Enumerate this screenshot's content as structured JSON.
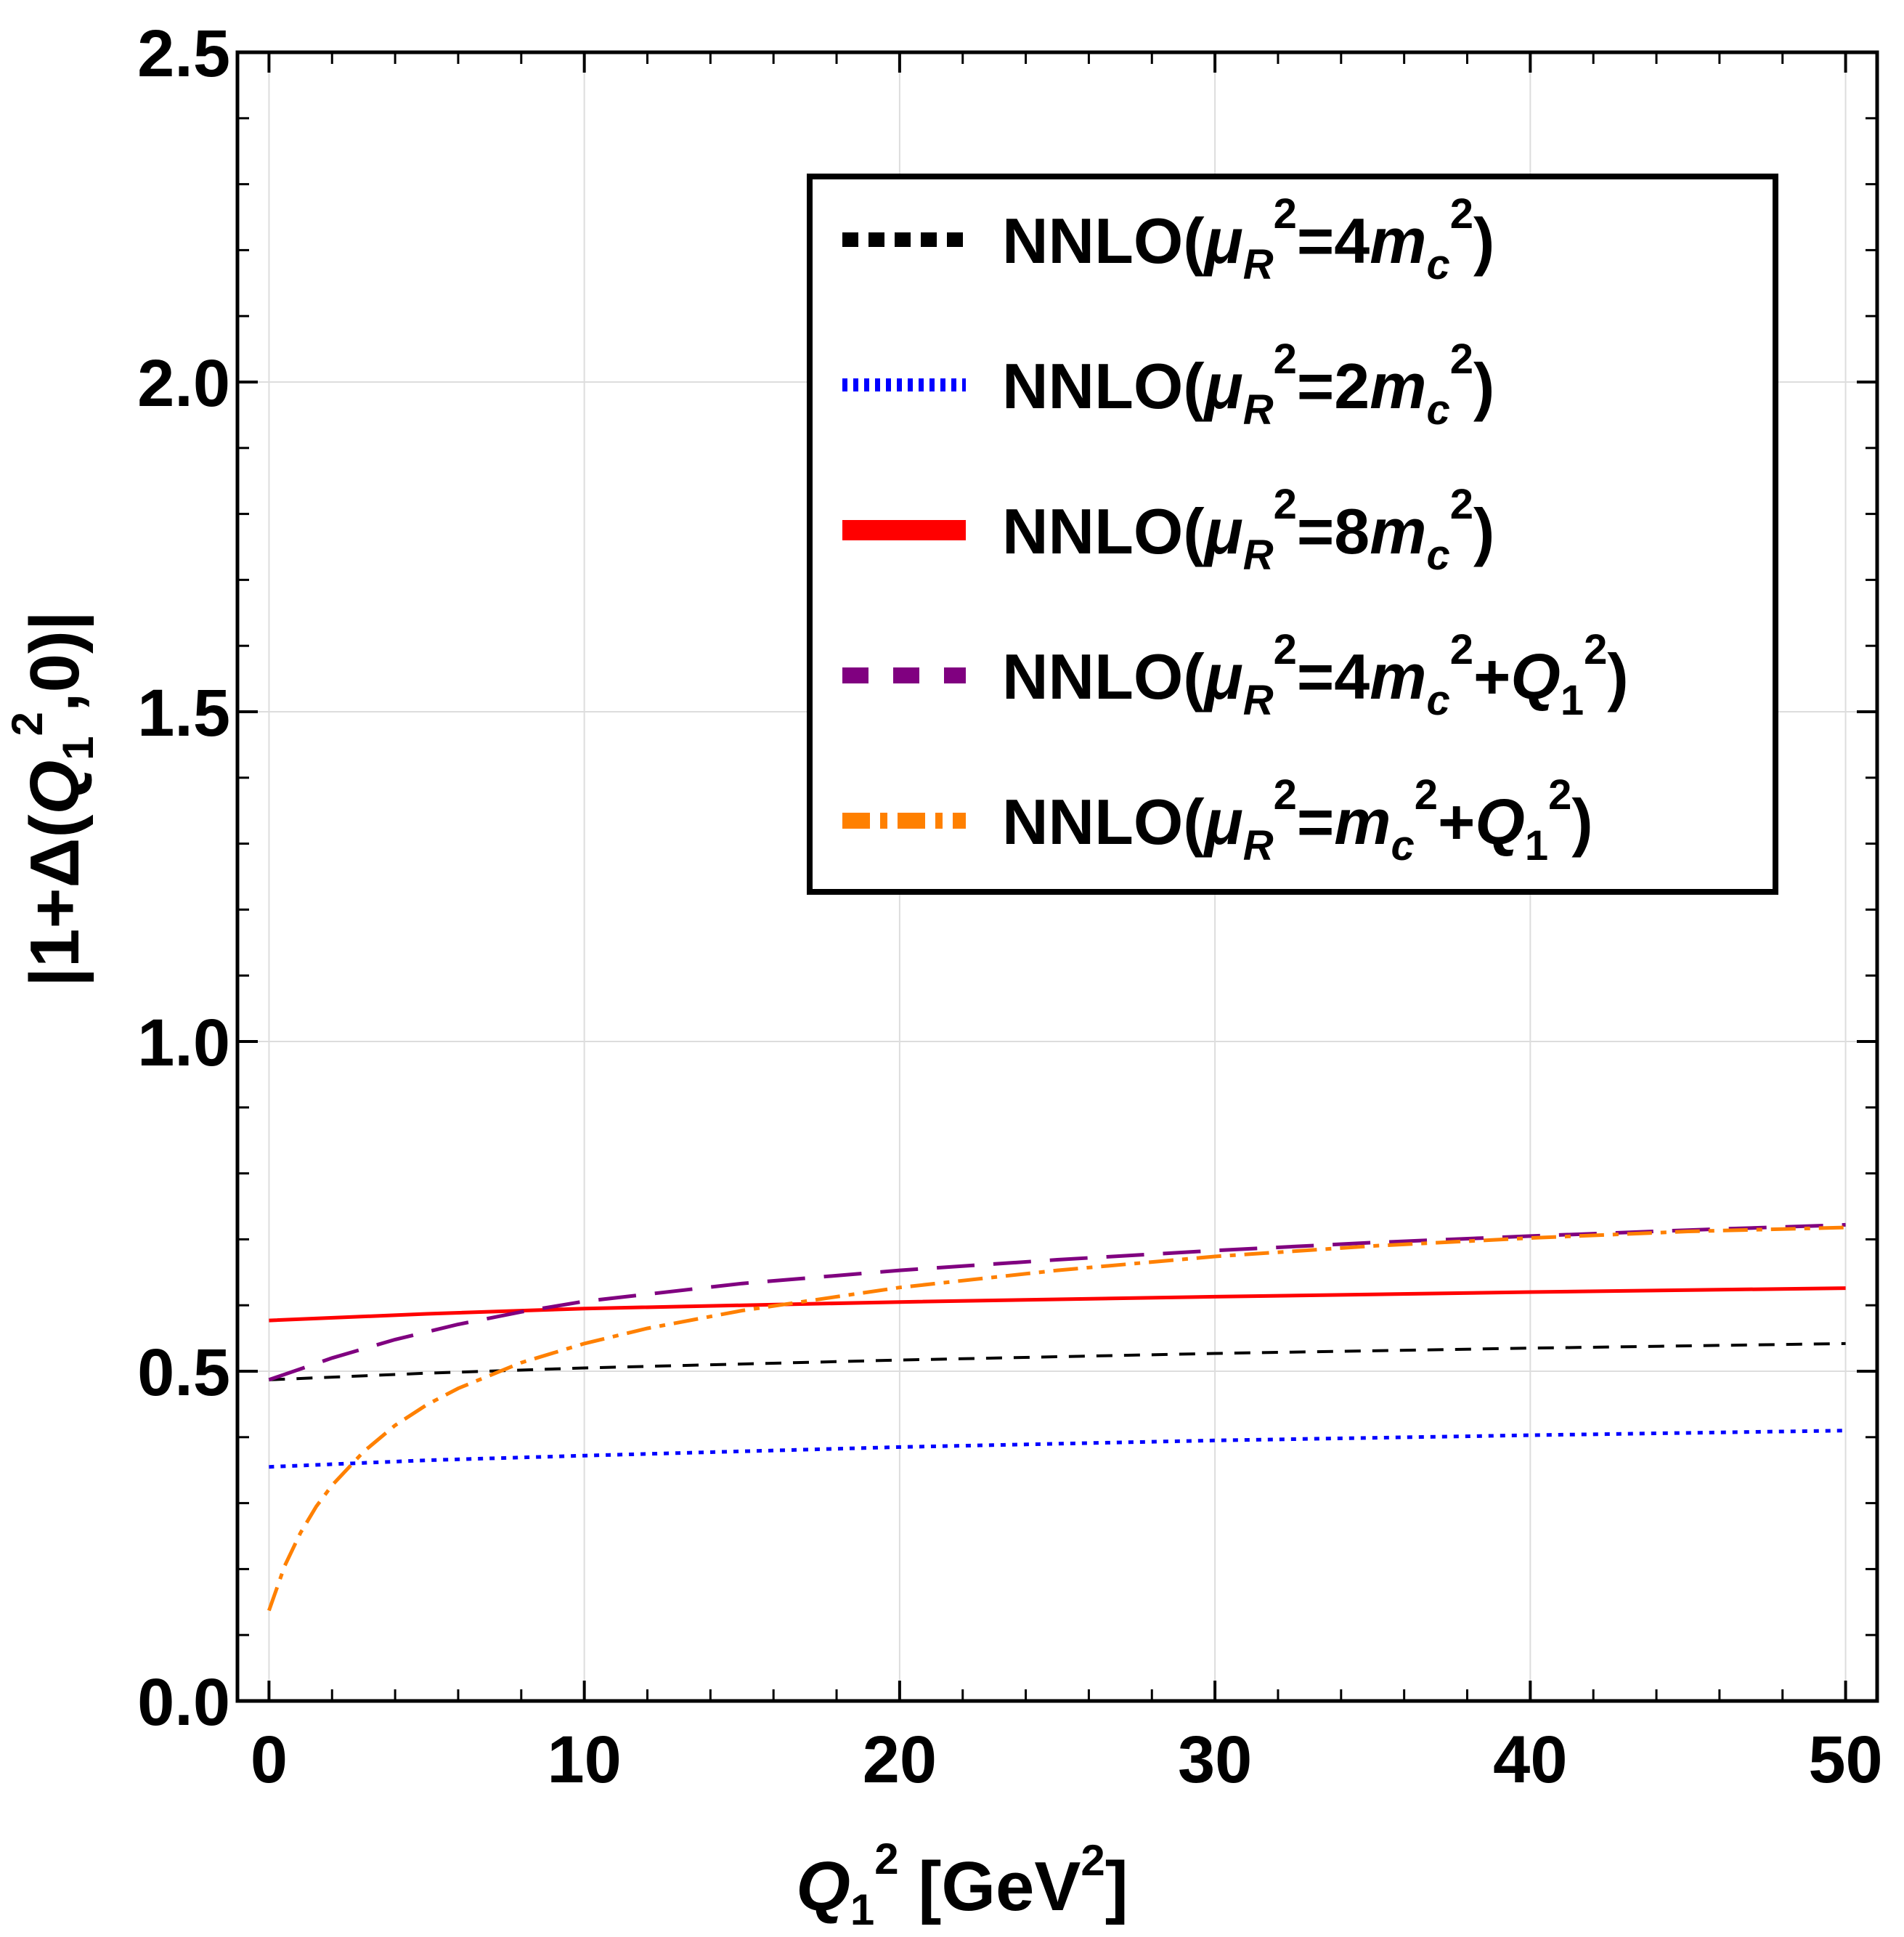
{
  "chart_data": {
    "type": "line",
    "xlabel": {
      "main": "Q",
      "sub": "1",
      "sup": "2",
      "unit_open": " [GeV",
      "unit_sup": "2",
      "unit_close": "]"
    },
    "ylabel": {
      "open": "|1+Δ(",
      "q": "Q",
      "sub": "1",
      "sup": "2",
      "close": ",0)|"
    },
    "xlim": [
      -1,
      51
    ],
    "ylim": [
      0,
      2.5
    ],
    "xticks": [
      0,
      10,
      20,
      30,
      40,
      50
    ],
    "yticks": [
      0.0,
      0.5,
      1.0,
      1.5,
      2.0,
      2.5
    ],
    "xtick_labels": [
      "0",
      "10",
      "20",
      "30",
      "40",
      "50"
    ],
    "ytick_labels": [
      "0.0",
      "0.5",
      "1.0",
      "1.5",
      "2.0",
      "2.5"
    ],
    "grid": true,
    "legend_position": "top-right",
    "series": [
      {
        "name": "NNLO(μR²=4mc²)",
        "scale": "=4",
        "tail": "",
        "color": "#000000",
        "style": "dashed",
        "x": [
          0,
          5,
          10,
          20,
          30,
          40,
          50
        ],
        "y": [
          0.487,
          0.497,
          0.505,
          0.517,
          0.527,
          0.535,
          0.542
        ]
      },
      {
        "name": "NNLO(μR²=2mc²)",
        "scale": "=2",
        "tail": "",
        "color": "#0000ff",
        "style": "dotted",
        "x": [
          0,
          5,
          10,
          20,
          30,
          40,
          50
        ],
        "y": [
          0.355,
          0.365,
          0.372,
          0.385,
          0.395,
          0.403,
          0.41
        ]
      },
      {
        "name": "NNLO(μR²=8mc²)",
        "scale": "=8",
        "tail": "",
        "color": "#ff0000",
        "style": "solid",
        "x": [
          0,
          5,
          10,
          20,
          30,
          40,
          50
        ],
        "y": [
          0.577,
          0.587,
          0.595,
          0.605,
          0.613,
          0.62,
          0.626
        ]
      },
      {
        "name": "NNLO(μR²=4mc²+Q1²)",
        "scale": "=4",
        "tail": "+Q1",
        "color": "#800080",
        "style": "longdash",
        "x": [
          0,
          2,
          4,
          6,
          8,
          10,
          15,
          20,
          25,
          30,
          35,
          40,
          45,
          50
        ],
        "y": [
          0.487,
          0.52,
          0.548,
          0.571,
          0.59,
          0.606,
          0.633,
          0.653,
          0.669,
          0.683,
          0.695,
          0.705,
          0.714,
          0.722
        ]
      },
      {
        "name": "NNLO(μR²=mc²+Q1²)",
        "scale": "=",
        "tail": "+Q1",
        "color": "#ff8000",
        "style": "dashdot",
        "x": [
          0,
          0.5,
          1,
          1.5,
          2,
          3,
          4,
          5,
          6,
          8,
          10,
          12,
          15,
          20,
          25,
          30,
          35,
          40,
          45,
          50
        ],
        "y": [
          0.137,
          0.205,
          0.255,
          0.295,
          0.327,
          0.378,
          0.418,
          0.449,
          0.474,
          0.513,
          0.542,
          0.565,
          0.592,
          0.627,
          0.653,
          0.674,
          0.69,
          0.702,
          0.712,
          0.718
        ]
      }
    ]
  }
}
